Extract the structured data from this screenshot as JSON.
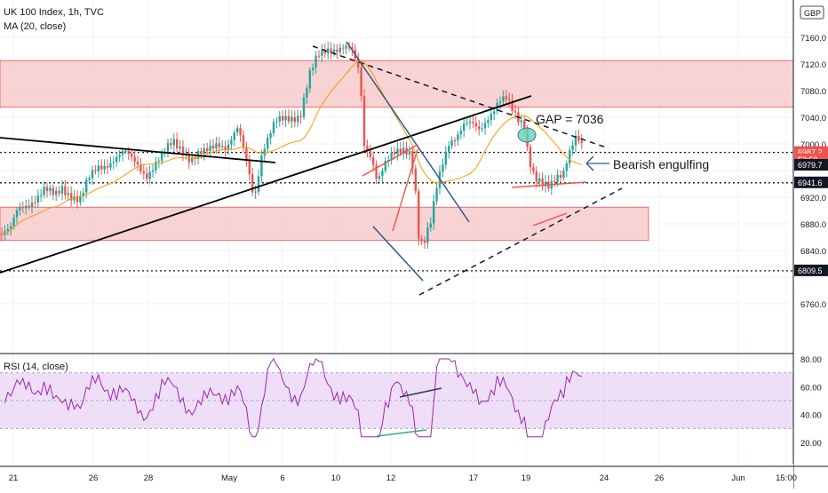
{
  "header": {
    "symbol": "UK 100 Index, 1h, TVC",
    "indicator": "MA (20, close)",
    "rsi_label": "RSI (14, close)",
    "currency": "GBP"
  },
  "annotations": {
    "gap": "GAP = 7036",
    "engulfing": "Bearish engulfing"
  },
  "colors": {
    "up": "#26a69a",
    "down": "#ef5350",
    "ma": "#ff9800",
    "zone_fill": "#f5c4c4",
    "zone_border": "#ef5350",
    "rsi_line": "#9c27b0",
    "rsi_band": "#ead6f5",
    "trendline": "#000000",
    "channel": "#2f5a80",
    "divergence_up": "#3aa87a",
    "gap_marker": "#5fd3b8"
  },
  "chart_data": {
    "type": "candlestick",
    "title": "UK 100 Index, 1h, TVC",
    "price_axis": {
      "ticks": [
        7160,
        7120,
        7080,
        7040,
        7000,
        6960,
        6920,
        6880,
        6840,
        6800,
        6760
      ],
      "tick_labels": [
        "7160.0",
        "7120.0",
        "7080.0",
        "7040.0",
        "7000.0",
        "",
        "6920.0",
        "6880.0",
        "6840.0",
        "",
        "6760.0"
      ],
      "range": [
        6735,
        7200
      ]
    },
    "price_labels": [
      {
        "label": "6987.2",
        "value": 6987.2,
        "color": "#ef5350"
      },
      {
        "label": "53:50",
        "value": 6976,
        "color": "#ef5350"
      },
      {
        "label": "6979.7",
        "value": 6968,
        "color": "#131722"
      },
      {
        "label": "6941.6",
        "value": 6941.6,
        "color": "#131722"
      },
      {
        "label": "6809.5",
        "value": 6809.5,
        "color": "#131722"
      }
    ],
    "horizontal_levels": [
      6987.2,
      6941.6,
      6809.5
    ],
    "zones": [
      {
        "from": 7055,
        "to": 7125
      },
      {
        "from": 6855,
        "to": 6905
      }
    ],
    "x_axis": {
      "labels": [
        "21",
        "26",
        "28",
        "May",
        "6",
        "10",
        "12",
        "17",
        "19",
        "24",
        "26",
        "Jun",
        "15:00"
      ]
    },
    "rsi": {
      "ticks": [
        80,
        60,
        40,
        20
      ],
      "tick_labels": [
        "80.00",
        "60.00",
        "40.00",
        "20.00"
      ],
      "band": [
        30,
        70
      ]
    }
  }
}
